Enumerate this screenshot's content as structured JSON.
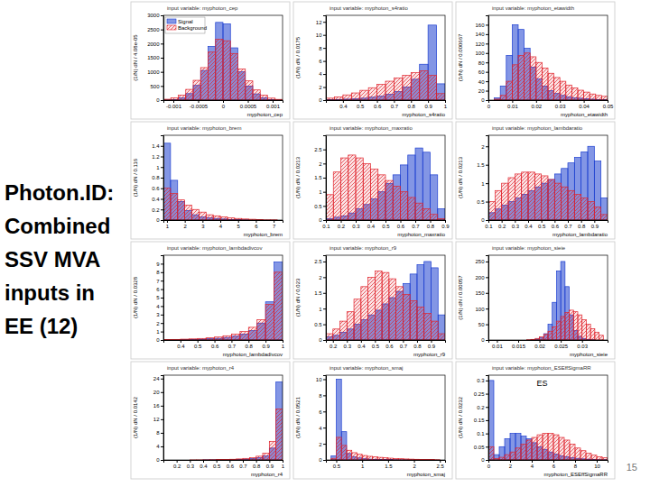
{
  "title_lines": [
    "Photon.ID:",
    "Combined",
    "SSV MVA",
    "inputs in",
    "EE (12)"
  ],
  "page_number": 15,
  "chart_data": [
    {
      "type": "histogram",
      "title": "input variable: myphoton_cep",
      "x_label": "myphoton_cep",
      "y_label": "(1/N) dN / 4.08e-05",
      "legend": "top-left",
      "bins": [
        -0.0012,
        -0.00105,
        -0.0009,
        -0.00075,
        -0.0006,
        -0.00045,
        -0.0003,
        -0.00015,
        0,
        0.00015,
        0.0003,
        0.00045,
        0.0006,
        0.00075,
        0.0009,
        0.00105,
        0.0012
      ],
      "series": [
        {
          "name": "Signal",
          "color": "#1d3fd0",
          "values": [
            5,
            20,
            80,
            230,
            520,
            1050,
            1900,
            2750,
            2700,
            1850,
            1000,
            500,
            220,
            80,
            20,
            5
          ]
        },
        {
          "name": "Background",
          "color": "#e0242c",
          "values": [
            30,
            80,
            180,
            380,
            700,
            1150,
            1700,
            2150,
            2100,
            1650,
            1100,
            680,
            360,
            170,
            70,
            25
          ]
        }
      ],
      "xlim": [
        -0.0012,
        0.0012
      ],
      "xticks": [
        -0.001,
        -0.0005,
        0,
        0.0005,
        0.001
      ],
      "ylim": [
        0,
        3000
      ],
      "yticks": [
        0,
        500,
        1000,
        1500,
        2000,
        2500,
        3000
      ]
    },
    {
      "type": "histogram",
      "title": "input variable: myphoton_s4ratio",
      "x_label": "myphoton_s4ratio",
      "y_label": "(1/N) dN / 0.0175",
      "bins": [
        0.3,
        0.35,
        0.4,
        0.45,
        0.5,
        0.55,
        0.6,
        0.65,
        0.7,
        0.75,
        0.8,
        0.85,
        0.9,
        0.95,
        1
      ],
      "series": [
        {
          "color": "#1d3fd0",
          "values": [
            0.05,
            0.1,
            0.15,
            0.2,
            0.3,
            0.45,
            0.6,
            0.9,
            1.3,
            2,
            3.2,
            5.5,
            11.5,
            2.5
          ]
        },
        {
          "color": "#e0242c",
          "values": [
            0.3,
            0.5,
            0.8,
            1.1,
            1.5,
            1.9,
            2.4,
            2.9,
            3.4,
            3.8,
            4.2,
            4.5,
            3.8,
            1
          ]
        }
      ],
      "xlim": [
        0.3,
        1
      ],
      "xticks": [
        0.4,
        0.5,
        0.6,
        0.7,
        0.8,
        0.9,
        1
      ],
      "ylim": [
        0,
        13
      ],
      "yticks": [
        0,
        2,
        4,
        6,
        8,
        10,
        12
      ]
    },
    {
      "type": "histogram",
      "title": "input variable: myphoton_etawidth",
      "x_label": "myphoton_etawidth",
      "y_label": "(1/N) dN / 0.000667",
      "bins": [
        0,
        0.0025,
        0.005,
        0.0075,
        0.01,
        0.0125,
        0.015,
        0.0175,
        0.02,
        0.0225,
        0.025,
        0.0275,
        0.03,
        0.0325,
        0.035,
        0.0375,
        0.04,
        0.0425,
        0.045,
        0.0475,
        0.05
      ],
      "series": [
        {
          "color": "#1d3fd0",
          "values": [
            0,
            5,
            30,
            95,
            160,
            150,
            110,
            70,
            45,
            30,
            20,
            14,
            10,
            7,
            5,
            4,
            3,
            2,
            1,
            1
          ]
        },
        {
          "color": "#e0242c",
          "values": [
            0,
            2,
            10,
            40,
            75,
            95,
            100,
            92,
            80,
            68,
            57,
            48,
            40,
            32,
            26,
            21,
            17,
            13,
            10,
            8
          ]
        }
      ],
      "xlim": [
        0,
        0.05
      ],
      "xticks": [
        0,
        0.01,
        0.02,
        0.03,
        0.04,
        0.05
      ],
      "ylim": [
        0,
        180
      ],
      "yticks": [
        0,
        20,
        40,
        60,
        80,
        100,
        120,
        140,
        160
      ]
    },
    {
      "type": "histogram",
      "title": "input variable: myphoton_brem",
      "x_label": "myphoton_brem",
      "y_label": "(1/N) dN / 0.116",
      "bins": [
        0.8,
        1.2,
        1.6,
        2,
        2.4,
        2.8,
        3.2,
        3.6,
        4,
        4.4,
        4.8,
        5.2,
        5.6,
        6,
        6.4,
        6.8,
        7.2
      ],
      "series": [
        {
          "color": "#1d3fd0",
          "values": [
            1.45,
            0.75,
            0.35,
            0.18,
            0.1,
            0.06,
            0.04,
            0.03,
            0.02,
            0.01,
            0.01,
            0.005,
            0,
            0,
            0,
            0
          ]
        },
        {
          "color": "#e0242c",
          "values": [
            0.6,
            0.5,
            0.38,
            0.28,
            0.2,
            0.15,
            0.1,
            0.08,
            0.06,
            0.04,
            0.03,
            0.02,
            0.015,
            0.01,
            0.005,
            0.005
          ]
        }
      ],
      "xlim": [
        0.8,
        7.5
      ],
      "xticks": [
        1,
        2,
        3,
        4,
        5,
        6,
        7
      ],
      "ylim": [
        0,
        1.6
      ],
      "yticks": [
        0,
        0.2,
        0.4,
        0.6,
        0.8,
        1,
        1.2,
        1.4
      ]
    },
    {
      "type": "histogram",
      "title": "input variable: myphoton_maxratio",
      "x_label": "myphoton_maxratio",
      "y_label": "(1/N) dN / 0.0213",
      "bins": [
        0.1,
        0.15,
        0.2,
        0.25,
        0.3,
        0.35,
        0.4,
        0.45,
        0.5,
        0.55,
        0.6,
        0.65,
        0.7,
        0.75,
        0.8,
        0.85,
        0.9
      ],
      "series": [
        {
          "color": "#1d3fd0",
          "values": [
            0.05,
            0.1,
            0.15,
            0.25,
            0.4,
            0.55,
            0.75,
            1,
            1.3,
            1.6,
            1.95,
            2.3,
            2.55,
            2.4,
            1.6,
            0.4
          ]
        },
        {
          "color": "#e0242c",
          "values": [
            0.9,
            1.7,
            2.2,
            2.3,
            2.2,
            2,
            1.8,
            1.6,
            1.4,
            1.2,
            1,
            0.8,
            0.6,
            0.4,
            0.2,
            0.05
          ]
        }
      ],
      "xlim": [
        0.1,
        0.9
      ],
      "xticks": [
        0.1,
        0.2,
        0.3,
        0.4,
        0.5,
        0.6,
        0.7,
        0.8,
        0.9
      ],
      "ylim": [
        0,
        3
      ],
      "yticks": [
        0,
        0.5,
        1,
        1.5,
        2,
        2.5
      ]
    },
    {
      "type": "histogram",
      "title": "input variable: myphoton_lambdaratio",
      "x_label": "myphoton_lambdaratio",
      "y_label": "(1/N) dN / 0.0213",
      "bins": [
        0.1,
        0.15,
        0.2,
        0.25,
        0.3,
        0.35,
        0.4,
        0.45,
        0.5,
        0.55,
        0.6,
        0.65,
        0.7,
        0.75,
        0.8,
        0.85,
        0.9,
        0.95,
        1
      ],
      "series": [
        {
          "color": "#1d3fd0",
          "values": [
            0.2,
            0.3,
            0.4,
            0.5,
            0.6,
            0.7,
            0.8,
            0.9,
            1,
            1.1,
            1.25,
            1.4,
            1.55,
            1.7,
            1.85,
            2,
            1.6,
            0.6
          ]
        },
        {
          "color": "#e0242c",
          "values": [
            0.5,
            0.8,
            1,
            1.15,
            1.25,
            1.3,
            1.3,
            1.25,
            1.2,
            1.1,
            1,
            0.9,
            0.8,
            0.7,
            0.6,
            0.5,
            0.35,
            0.15
          ]
        }
      ],
      "xlim": [
        0.1,
        1
      ],
      "xticks": [
        0.1,
        0.2,
        0.3,
        0.4,
        0.5,
        0.6,
        0.7,
        0.8,
        0.9
      ],
      "ylim": [
        0,
        2.3
      ],
      "yticks": [
        0,
        0.5,
        1,
        1.5,
        2
      ]
    },
    {
      "type": "histogram",
      "title": "input variable: myphoton_lambdadivcov",
      "x_label": "myphoton_lambdadivcov",
      "y_label": "(1/N) dN / 0.0328",
      "bins": [
        0.3,
        0.35,
        0.4,
        0.45,
        0.5,
        0.55,
        0.6,
        0.65,
        0.7,
        0.75,
        0.8,
        0.85,
        0.9,
        0.95,
        1
      ],
      "series": [
        {
          "color": "#1d3fd0",
          "values": [
            0.02,
            0.03,
            0.05,
            0.07,
            0.1,
            0.15,
            0.2,
            0.3,
            0.45,
            0.7,
            1.1,
            2,
            4.5,
            9.2
          ]
        },
        {
          "color": "#e0242c",
          "values": [
            0.05,
            0.07,
            0.1,
            0.13,
            0.18,
            0.25,
            0.35,
            0.5,
            0.7,
            1,
            1.5,
            2.4,
            4.2,
            8
          ]
        }
      ],
      "xlim": [
        0.3,
        1
      ],
      "xticks": [
        0.4,
        0.5,
        0.6,
        0.7,
        0.8,
        0.9,
        1
      ],
      "ylim": [
        0,
        10
      ],
      "yticks": [
        0,
        1,
        2,
        3,
        4,
        5,
        6,
        7,
        8,
        9
      ]
    },
    {
      "type": "histogram",
      "title": "input variable: myphoton_r9",
      "x_label": "myphoton_r9",
      "y_label": "(1/N) dN / 0.023",
      "bins": [
        0.15,
        0.2,
        0.25,
        0.3,
        0.35,
        0.4,
        0.45,
        0.5,
        0.55,
        0.6,
        0.65,
        0.7,
        0.75,
        0.8,
        0.85,
        0.9,
        0.95,
        1
      ],
      "series": [
        {
          "color": "#1d3fd0",
          "values": [
            0.1,
            0.15,
            0.25,
            0.35,
            0.5,
            0.65,
            0.8,
            0.95,
            1.15,
            1.35,
            1.55,
            1.8,
            2.1,
            2.4,
            2.5,
            2.3,
            0.8
          ]
        },
        {
          "color": "#e0242c",
          "values": [
            0.2,
            0.35,
            0.6,
            0.9,
            1.3,
            1.7,
            2,
            2.2,
            2.15,
            1.95,
            1.7,
            1.45,
            1.25,
            1.05,
            0.85,
            0.6,
            0.2
          ]
        }
      ],
      "xlim": [
        0.15,
        1
      ],
      "xticks": [
        0.2,
        0.3,
        0.4,
        0.5,
        0.6,
        0.7,
        0.8,
        0.9
      ],
      "ylim": [
        0,
        2.7
      ],
      "yticks": [
        0,
        0.5,
        1,
        1.5,
        2,
        2.5
      ]
    },
    {
      "type": "histogram",
      "title": "input variable: myphoton_sieie",
      "x_label": "myphoton_sieie",
      "y_label": "(1/N) dN / 0.00057",
      "bins": [
        0.01,
        0.011,
        0.012,
        0.013,
        0.014,
        0.015,
        0.016,
        0.017,
        0.018,
        0.019,
        0.02,
        0.021,
        0.022,
        0.023,
        0.024,
        0.025,
        0.026,
        0.027,
        0.028,
        0.029,
        0.03,
        0.031,
        0.032,
        0.033,
        0.034,
        0.035
      ],
      "series": [
        {
          "color": "#1d3fd0",
          "values": [
            0,
            0,
            0,
            0,
            0,
            0,
            0,
            0,
            1,
            3,
            8,
            20,
            50,
            120,
            220,
            250,
            170,
            80,
            30,
            12,
            5,
            2,
            1,
            0,
            0
          ]
        },
        {
          "color": "#e0242c",
          "values": [
            0,
            0,
            0,
            0,
            0,
            0,
            0,
            1,
            2,
            5,
            10,
            18,
            28,
            42,
            60,
            75,
            88,
            95,
            90,
            80,
            65,
            50,
            36,
            25,
            15
          ]
        }
      ],
      "xlim": [
        0.008,
        0.036
      ],
      "xticks": [
        0.01,
        0.015,
        0.02,
        0.025,
        0.03
      ],
      "ylim": [
        0,
        270
      ],
      "yticks": [
        0,
        50,
        100,
        150,
        200,
        250
      ]
    },
    {
      "type": "histogram",
      "title": "input variable: myphoton_r4",
      "x_label": "myphoton_r4",
      "y_label": "(1/N) dN / 0.0142",
      "bins": [
        0.1,
        0.15,
        0.2,
        0.25,
        0.3,
        0.35,
        0.4,
        0.45,
        0.5,
        0.55,
        0.6,
        0.65,
        0.7,
        0.75,
        0.8,
        0.85,
        0.9,
        0.95,
        1
      ],
      "series": [
        {
          "color": "#1d3fd0",
          "values": [
            0,
            0,
            0,
            0,
            0,
            0,
            0.01,
            0.02,
            0.04,
            0.06,
            0.1,
            0.15,
            0.25,
            0.4,
            0.7,
            1.2,
            3.5,
            23
          ]
        },
        {
          "color": "#e0242c",
          "values": [
            0,
            0,
            0,
            0,
            0.01,
            0.02,
            0.04,
            0.07,
            0.1,
            0.15,
            0.2,
            0.3,
            0.45,
            0.7,
            1.1,
            2,
            5.5,
            15
          ]
        }
      ],
      "xlim": [
        0.1,
        1
      ],
      "xticks": [
        0.2,
        0.3,
        0.4,
        0.5,
        0.6,
        0.7,
        0.8,
        0.9,
        1
      ],
      "ylim": [
        0,
        25
      ],
      "yticks": [
        0,
        4,
        8,
        12,
        16,
        20,
        24
      ]
    },
    {
      "type": "histogram",
      "title": "input variable: myphoton_smaj",
      "x_label": "myphoton_smaj",
      "y_label": "(1/N) dN / 0.0521",
      "bins": [
        0.3,
        0.4,
        0.5,
        0.6,
        0.7,
        0.8,
        0.9,
        1,
        1.1,
        1.2,
        1.3,
        1.4,
        1.5,
        1.6,
        1.7,
        1.8,
        1.9,
        2,
        2.1,
        2.2,
        2.3,
        2.4,
        2.5
      ],
      "series": [
        {
          "color": "#1d3fd0",
          "values": [
            0,
            0.5,
            10,
            3.5,
            0.8,
            0.4,
            0.25,
            0.15,
            0.1,
            0.08,
            0.06,
            0.05,
            0.04,
            0.03,
            0.02,
            0.02,
            0.01,
            0.01,
            0.01,
            0,
            0,
            0
          ]
        },
        {
          "color": "#e0242c",
          "values": [
            0,
            0.2,
            2.8,
            1.8,
            1.2,
            0.9,
            0.7,
            0.55,
            0.45,
            0.38,
            0.32,
            0.27,
            0.22,
            0.18,
            0.15,
            0.12,
            0.1,
            0.08,
            0.06,
            0.05,
            0.04,
            0.03
          ]
        }
      ],
      "xlim": [
        0.3,
        2.6
      ],
      "xticks": [
        0.5,
        1,
        1.5,
        2,
        2.5
      ],
      "ylim": [
        0,
        10.5
      ],
      "yticks": [
        0,
        2,
        4,
        6,
        8,
        10
      ]
    },
    {
      "type": "histogram",
      "title": "input variable: myphoton_ESEffSigmaRR",
      "x_label": "myphoton_ESEffSigmaRR",
      "y_label": "(1/N) dN / 0.0232",
      "annotation": "ES",
      "bins": [
        0,
        0.5,
        1,
        1.5,
        2,
        2.5,
        3,
        3.5,
        4,
        4.5,
        5,
        5.5,
        6,
        6.5,
        7,
        7.5,
        8,
        8.5,
        9,
        9.5,
        10,
        10.5,
        11
      ],
      "series": [
        {
          "color": "#1d3fd0",
          "values": [
            0.3,
            0.02,
            0.05,
            0.08,
            0.1,
            0.1,
            0.09,
            0.08,
            0.065,
            0.05,
            0.04,
            0.03,
            0.022,
            0.016,
            0.012,
            0.008,
            0.006,
            0.004,
            0.003,
            0.002,
            0.001,
            0.001
          ]
        },
        {
          "color": "#e0242c",
          "values": [
            0.05,
            0.005,
            0.01,
            0.02,
            0.03,
            0.045,
            0.06,
            0.075,
            0.085,
            0.095,
            0.1,
            0.1,
            0.095,
            0.085,
            0.075,
            0.06,
            0.045,
            0.035,
            0.025,
            0.018,
            0.012,
            0.008
          ]
        }
      ],
      "xlim": [
        0,
        11
      ],
      "xticks": [
        0,
        2,
        4,
        6,
        8,
        10
      ],
      "ylim": [
        0,
        0.32
      ],
      "yticks": [
        0,
        0.05,
        0.1,
        0.15,
        0.2,
        0.25,
        0.3
      ]
    }
  ]
}
